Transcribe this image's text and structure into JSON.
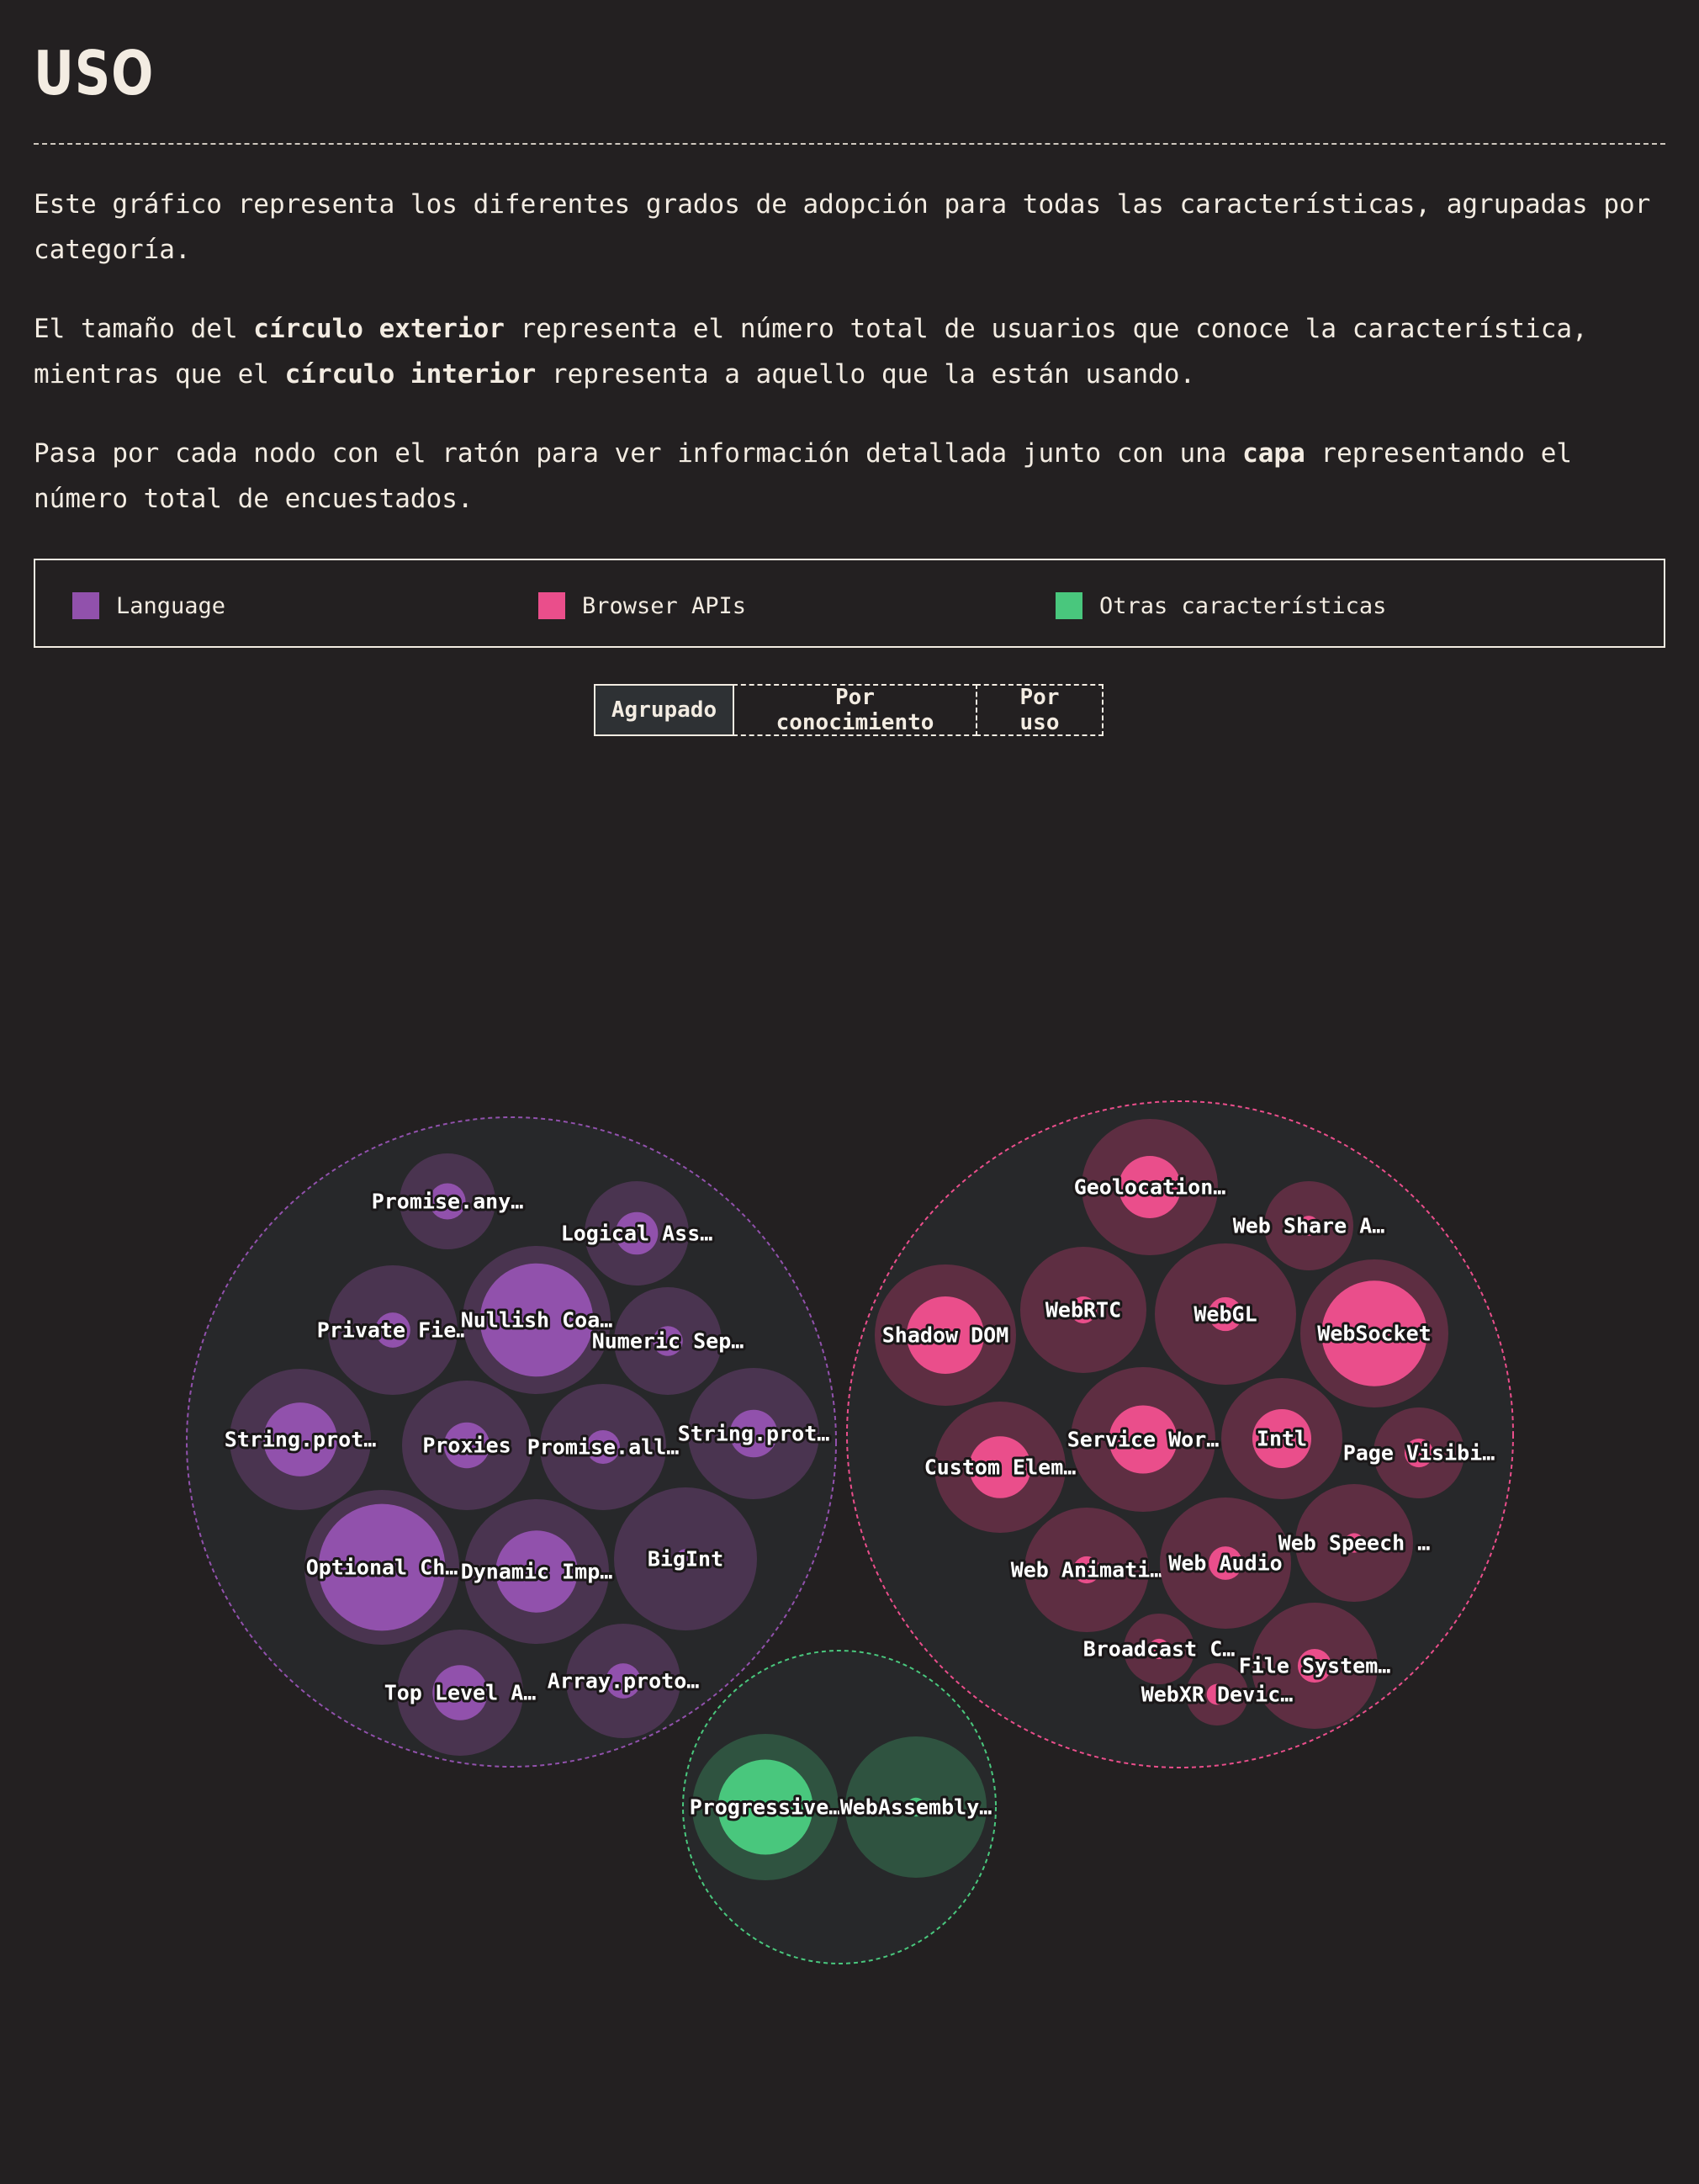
{
  "page": {
    "title": "USO",
    "intro": [
      [
        {
          "t": "Este gráfico representa los diferentes grados de adopción para todas las características, agrupadas por categoría.",
          "b": false
        }
      ],
      [
        {
          "t": "El tamaño del ",
          "b": false
        },
        {
          "t": "círculo exterior",
          "b": true
        },
        {
          "t": " representa el número total de usuarios que conoce la característica, mientras que el ",
          "b": false
        },
        {
          "t": "círculo interior",
          "b": true
        },
        {
          "t": " representa a aquello que la están usando.",
          "b": false
        }
      ],
      [
        {
          "t": "Pasa por cada nodo con el ratón para ver información detallada junto con una ",
          "b": false
        },
        {
          "t": "capa",
          "b": true
        },
        {
          "t": " representando el número total de encuestados.",
          "b": false
        }
      ]
    ],
    "legend": [
      {
        "label": "Language",
        "color": "#9151ac"
      },
      {
        "label": "Browser APIs",
        "color": "#ea4e8b"
      },
      {
        "label": "Otras características",
        "color": "#49c77d"
      }
    ],
    "tabs": [
      {
        "label": "Agrupado",
        "active": true
      },
      {
        "label": "Por conocimiento",
        "active": false
      },
      {
        "label": "Por uso",
        "active": false
      }
    ]
  },
  "chart_data": {
    "type": "bubble-pack",
    "description_of_encoding": "outer circle = awareness, inner circle = usage",
    "groups": [
      {
        "name": "Language",
        "color": "#9151ac",
        "fill": "#4a3450",
        "nodes": [
          {
            "label": "Promise.any…",
            "awareness": 0.42,
            "usage": 0.06
          },
          {
            "label": "Logical Ass…",
            "awareness": 0.24,
            "usage": 0.04
          },
          {
            "label": "Private Fie…",
            "awareness": 0.41,
            "usage": 0.03
          },
          {
            "label": "Nullish Coa…",
            "awareness": 0.65,
            "usage": 0.38
          },
          {
            "label": "Numeric Sep…",
            "awareness": 0.26,
            "usage": 0.02
          },
          {
            "label": "String.prot…",
            "awareness": 0.55,
            "usage": 0.15
          },
          {
            "label": "Proxies",
            "awareness": 0.4,
            "usage": 0.05
          },
          {
            "label": "Promise.all…",
            "awareness": 0.42,
            "usage": 0.03
          },
          {
            "label": "String.prot…",
            "awareness": 0.38,
            "usage": 0.05
          },
          {
            "label": "Optional Ch…",
            "awareness": 0.82,
            "usage": 0.55
          },
          {
            "label": "Dynamic Imp…",
            "awareness": 0.53,
            "usage": 0.17
          },
          {
            "label": "BigInt",
            "awareness": 0.52,
            "usage": 0.01
          },
          {
            "label": "Top Level A…",
            "awareness": 0.42,
            "usage": 0.08
          },
          {
            "label": "Array.proto…",
            "awareness": 0.32,
            "usage": 0.03
          }
        ]
      },
      {
        "name": "Browser APIs",
        "color": "#ea4e8b",
        "fill": "#5e2e42",
        "nodes": [
          {
            "label": "Geolocation…",
            "awareness": 0.48,
            "usage": 0.1
          },
          {
            "label": "Web Share A…",
            "awareness": 0.2,
            "usage": 0.01
          },
          {
            "label": "Shadow DOM",
            "awareness": 0.5,
            "usage": 0.15
          },
          {
            "label": "WebRTC",
            "awareness": 0.44,
            "usage": 0.02
          },
          {
            "label": "WebGL",
            "awareness": 0.52,
            "usage": 0.03
          },
          {
            "label": "WebSocket",
            "awareness": 0.59,
            "usage": 0.3
          },
          {
            "label": "Custom Elem…",
            "awareness": 0.45,
            "usage": 0.1
          },
          {
            "label": "Service Wor…",
            "awareness": 0.54,
            "usage": 0.12
          },
          {
            "label": "Intl",
            "awareness": 0.38,
            "usage": 0.09
          },
          {
            "label": "Page Visibi…",
            "awareness": 0.2,
            "usage": 0.02
          },
          {
            "label": "Web Animati…",
            "awareness": 0.42,
            "usage": 0.02
          },
          {
            "label": "Web Audio",
            "awareness": 0.46,
            "usage": 0.03
          },
          {
            "label": "Web Speech …",
            "awareness": 0.36,
            "usage": 0.01
          },
          {
            "label": "Broadcast C…",
            "awareness": 0.12,
            "usage": 0.01
          },
          {
            "label": "File System…",
            "awareness": 0.42,
            "usage": 0.03
          },
          {
            "label": "WebXR Devic…",
            "awareness": 0.09,
            "usage": 0.01
          }
        ]
      },
      {
        "name": "Otras características",
        "color": "#49c77d",
        "fill": "#2f5340",
        "nodes": [
          {
            "label": "Progressive…",
            "awareness": 0.57,
            "usage": 0.24
          },
          {
            "label": "WebAssembly…",
            "awareness": 0.56,
            "usage": 0.01
          }
        ]
      }
    ]
  }
}
